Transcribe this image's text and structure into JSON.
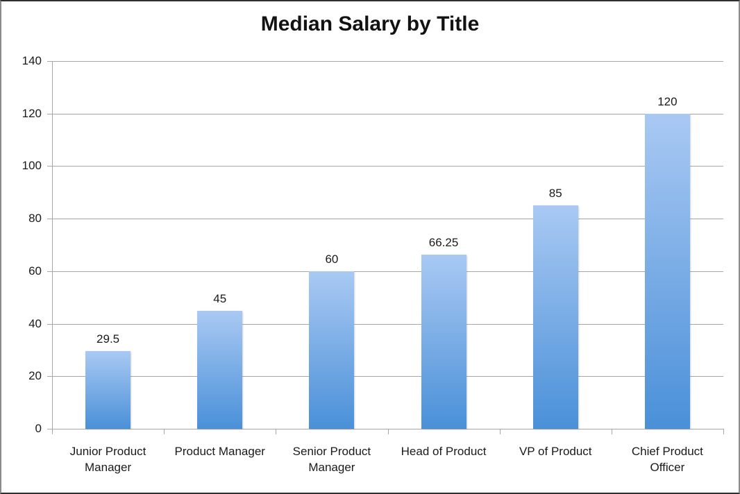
{
  "chart_data": {
    "type": "bar",
    "title": "Median Salary by Title",
    "categories": [
      "Junior Product Manager",
      "Product Manager",
      "Senior Product Manager",
      "Head of Product",
      "VP of Product",
      "Chief Product Officer"
    ],
    "x_tick_lines": [
      [
        "Junior Product",
        "Manager"
      ],
      [
        "Product Manager"
      ],
      [
        "Senior Product",
        "Manager"
      ],
      [
        "Head of Product"
      ],
      [
        "VP of Product"
      ],
      [
        "Chief Product",
        "Officer"
      ]
    ],
    "values": [
      29.5,
      45,
      60,
      66.25,
      85,
      120
    ],
    "data_labels": [
      "29.5",
      "45",
      "60",
      "66.25",
      "85",
      "120"
    ],
    "y_ticks": [
      0,
      20,
      40,
      60,
      80,
      100,
      120,
      140
    ],
    "ylim": [
      0,
      140
    ],
    "xlabel": "",
    "ylabel": "",
    "grid": true,
    "legend_position": "none",
    "colors": {
      "bar_gradient_top": "#a9c9f3",
      "bar_gradient_bottom": "#4a90d8",
      "gridline": "#a6a6a6",
      "axis": "#a6a6a6",
      "text": "#1a1a1a",
      "background": "#ffffff",
      "frame": "#2e2e2e"
    }
  }
}
